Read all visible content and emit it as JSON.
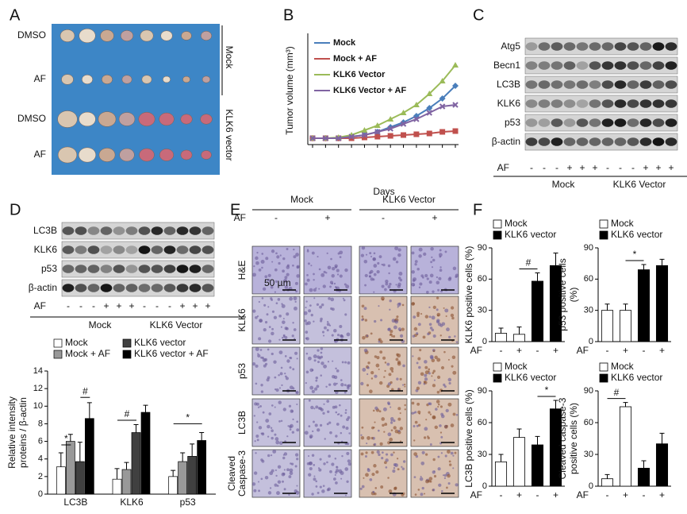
{
  "panel_labels": [
    "A",
    "B",
    "C",
    "D",
    "E",
    "F"
  ],
  "panel_a": {
    "row_labels": [
      "DMSO",
      "AF",
      "DMSO",
      "AF"
    ],
    "group_labels": [
      "Mock",
      "KLK6 vector"
    ]
  },
  "panel_c": {
    "rows": [
      "Atg5",
      "Becn1",
      "LC3B",
      "KLK6",
      "p53",
      "β-actin"
    ],
    "treatment_label": "AF",
    "treatment_signs": [
      "-",
      "-",
      "-",
      "+",
      "+",
      "+",
      "-",
      "-",
      "-",
      "+",
      "+",
      "+"
    ],
    "groups": [
      "Mock",
      "KLK6 Vector"
    ]
  },
  "panel_d_blot": {
    "rows": [
      "LC3B",
      "KLK6",
      "p53",
      "β-actin"
    ],
    "treatment_label": "AF",
    "treatment_signs": [
      "-",
      "-",
      "-",
      "+",
      "+",
      "+",
      "-",
      "-",
      "-",
      "+",
      "+",
      "+"
    ],
    "groups": [
      "Mock",
      "KLK6 Vector"
    ]
  },
  "panel_e": {
    "groups": [
      "Mock",
      "KLK6 Vector"
    ],
    "treatment_label": "AF",
    "treatment_signs": [
      "-",
      "+",
      "-",
      "+"
    ],
    "rows": [
      [
        "H&E"
      ],
      [
        "KLK6"
      ],
      [
        "p53"
      ],
      [
        "LC3B"
      ],
      [
        "Cleaved",
        "Caspase-3"
      ]
    ],
    "scale_bar": "50 µm"
  },
  "chart_data": [
    {
      "type": "line",
      "y_label": "Tumor volume (mm³)",
      "x_label": "Days",
      "categories": [
        null,
        null,
        null,
        null,
        null,
        null,
        null,
        null,
        null,
        null,
        null,
        null
      ],
      "ylim": [
        0,
        6
      ],
      "series": [
        {
          "name": "Mock",
          "color": "#4a7ebb",
          "values": [
            0,
            0,
            0,
            0.1,
            0.2,
            0.4,
            0.7,
            1.0,
            1.4,
            1.9,
            2.5,
            3.3
          ]
        },
        {
          "name": "Mock + AF",
          "color": "#c0504d",
          "values": [
            0,
            0,
            0,
            0,
            0.05,
            0.1,
            0.15,
            0.2,
            0.25,
            0.3,
            0.4,
            0.45
          ]
        },
        {
          "name": "KLK6 Vector",
          "color": "#9bbb59",
          "values": [
            0,
            0,
            0.05,
            0.2,
            0.5,
            0.8,
            1.2,
            1.6,
            2.1,
            2.8,
            3.6,
            4.6
          ]
        },
        {
          "name": "KLK6 Vector + AF",
          "color": "#8064a2",
          "values": [
            0,
            0,
            0,
            0.1,
            0.2,
            0.4,
            0.6,
            0.9,
            1.2,
            1.6,
            2.0,
            2.1
          ]
        }
      ]
    },
    {
      "type": "bar",
      "y_label": [
        "Relative intensity",
        "proteins / β-actin"
      ],
      "categories": [
        "LC3B",
        "KLK6",
        "p53"
      ],
      "ylim": [
        0,
        14
      ],
      "yticks": [
        0,
        2,
        4,
        6,
        8,
        10,
        12,
        14
      ],
      "annotations": [
        "*",
        "#",
        "#",
        "*"
      ],
      "series": [
        {
          "name": "Mock",
          "color": "#ffffff",
          "values": [
            3.1,
            1.7,
            2.0
          ],
          "errors": [
            1.6,
            1.2,
            0.7
          ]
        },
        {
          "name": "Mock + AF",
          "color": "#999999",
          "values": [
            6.0,
            2.8,
            3.7
          ],
          "errors": [
            0.8,
            0.8,
            1.0
          ]
        },
        {
          "name": "KLK6 vector",
          "color": "#404040",
          "values": [
            3.7,
            7.0,
            4.3
          ],
          "errors": [
            2.2,
            0.9,
            1.4
          ]
        },
        {
          "name": "KLK6 vector + AF",
          "color": "#000000",
          "values": [
            8.6,
            9.3,
            6.1
          ],
          "errors": [
            1.8,
            0.8,
            0.9
          ]
        }
      ]
    },
    {
      "type": "bar",
      "y_label": [
        "KLK6 positive cells (%)"
      ],
      "x_label": "AF",
      "categories": [
        "-",
        "+",
        "-",
        "+"
      ],
      "values": [
        8,
        7,
        58,
        73
      ],
      "errors": [
        5,
        7,
        8,
        12
      ],
      "colors": [
        "#ffffff",
        "#ffffff",
        "#000000",
        "#000000"
      ],
      "ylim": [
        0,
        90
      ],
      "yticks": [
        0,
        30,
        60,
        90
      ],
      "annotation": "#",
      "legend": [
        {
          "name": "Mock",
          "color": "#ffffff"
        },
        {
          "name": "KLK6 vector",
          "color": "#000000"
        }
      ]
    },
    {
      "type": "bar",
      "y_label": [
        "p53 positive cells",
        "(%)"
      ],
      "x_label": "AF",
      "categories": [
        "-",
        "+",
        "-",
        "+"
      ],
      "values": [
        30,
        30,
        69,
        73
      ],
      "errors": [
        6,
        6,
        5,
        6
      ],
      "colors": [
        "#ffffff",
        "#ffffff",
        "#000000",
        "#000000"
      ],
      "ylim": [
        0,
        90
      ],
      "yticks": [
        0,
        30,
        60,
        90
      ],
      "annotation": "*",
      "legend": [
        {
          "name": "Mock",
          "color": "#ffffff"
        },
        {
          "name": "KLK6 vector",
          "color": "#000000"
        }
      ]
    },
    {
      "type": "bar",
      "y_label": [
        "LC3B positive cells (%)"
      ],
      "x_label": "AF",
      "categories": [
        "-",
        "+",
        "-",
        "+"
      ],
      "values": [
        23,
        46,
        39,
        73
      ],
      "errors": [
        7,
        8,
        8,
        8
      ],
      "colors": [
        "#ffffff",
        "#ffffff",
        "#000000",
        "#000000"
      ],
      "ylim": [
        0,
        90
      ],
      "yticks": [
        0,
        30,
        60,
        90
      ],
      "annotation": "*",
      "legend": [
        {
          "name": "Mock",
          "color": "#ffffff"
        },
        {
          "name": "KLK6 vector",
          "color": "#000000"
        }
      ]
    },
    {
      "type": "bar",
      "y_label": [
        "Cleaved caspase-3",
        "positive cells (%)"
      ],
      "x_label": "AF",
      "categories": [
        "-",
        "+",
        "-",
        "+"
      ],
      "values": [
        7,
        75,
        17,
        40
      ],
      "errors": [
        4,
        4,
        7,
        10
      ],
      "colors": [
        "#ffffff",
        "#ffffff",
        "#000000",
        "#000000"
      ],
      "ylim": [
        0,
        90
      ],
      "yticks": [
        0,
        30,
        60,
        90
      ],
      "annotation": "#",
      "legend": [
        {
          "name": "Mock",
          "color": "#ffffff"
        },
        {
          "name": "KLK6 vector",
          "color": "#000000"
        }
      ]
    }
  ]
}
